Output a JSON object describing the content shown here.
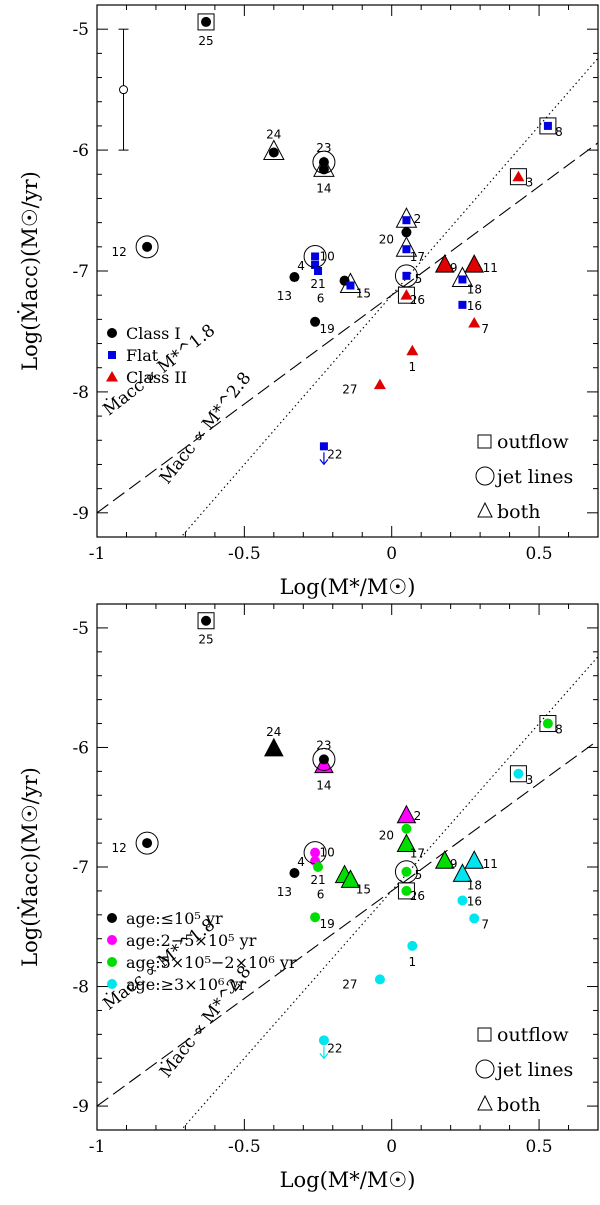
{
  "chart_data": [
    {
      "type": "scatter",
      "panel": "top",
      "xlabel": "Log(M*/M☉)",
      "ylabel": "Log(Ṁacc)(M☉/yr)",
      "xlim": [
        -1,
        0.7
      ],
      "ylim": [
        -9.2,
        -4.8
      ],
      "xticks": [
        "-1",
        "-0.5",
        "0",
        "0.5"
      ],
      "yticks": [
        "-9",
        "-8",
        "-7",
        "-6",
        "-5"
      ],
      "colors": {
        "class1": "#000000",
        "flat": "#0000e0",
        "class2": "#e00000"
      },
      "error_bar": {
        "x": -0.91,
        "y": -5.5,
        "ylow": -6.0,
        "yhigh": -5.0
      },
      "relations": [
        {
          "label": "Ṁacc ∝ M*^1.8",
          "slope": 1.8,
          "intercept": -7.2,
          "style": "dashed"
        },
        {
          "label": "Ṁacc ∝ M*^2.8",
          "slope": 2.8,
          "intercept": -7.2,
          "style": "dotted"
        }
      ],
      "legend": [
        {
          "label": "Class I",
          "marker": "circle",
          "group": "class1"
        },
        {
          "label": "Flat",
          "marker": "square",
          "group": "flat"
        },
        {
          "label": "Class II",
          "marker": "triangle",
          "group": "class2"
        }
      ],
      "outflow_legend": [
        "outflow",
        "jet lines",
        "both"
      ],
      "points": [
        {
          "id": "1",
          "x": 0.07,
          "y": -7.66,
          "group": "class2",
          "ring": "none"
        },
        {
          "id": "2",
          "x": 0.05,
          "y": -6.58,
          "group": "flat",
          "ring": "triangle"
        },
        {
          "id": "3",
          "x": 0.43,
          "y": -6.22,
          "group": "class2",
          "ring": "square"
        },
        {
          "id": "4",
          "x": -0.26,
          "y": -6.95,
          "group": "flat",
          "ring": "none"
        },
        {
          "id": "5",
          "x": 0.05,
          "y": -7.04,
          "group": "flat",
          "ring": "circle"
        },
        {
          "id": "6",
          "x": -0.16,
          "y": -7.08,
          "group": "class1",
          "ring": "none"
        },
        {
          "id": "7",
          "x": 0.28,
          "y": -7.43,
          "group": "class2",
          "ring": "none"
        },
        {
          "id": "8",
          "x": 0.53,
          "y": -5.8,
          "group": "flat",
          "ring": "square"
        },
        {
          "id": "9",
          "x": 0.18,
          "y": -6.96,
          "group": "class2",
          "ring": "triangle"
        },
        {
          "id": "10",
          "x": -0.26,
          "y": -6.88,
          "group": "flat",
          "ring": "circle"
        },
        {
          "id": "11",
          "x": 0.28,
          "y": -6.96,
          "group": "class2",
          "ring": "triangle"
        },
        {
          "id": "12",
          "x": -0.83,
          "y": -6.8,
          "group": "class1",
          "ring": "circle"
        },
        {
          "id": "13",
          "x": -0.33,
          "y": -7.05,
          "group": "class1",
          "ring": "none"
        },
        {
          "id": "14",
          "x": -0.23,
          "y": -6.16,
          "group": "class1",
          "ring": "triangle"
        },
        {
          "id": "15",
          "x": -0.14,
          "y": -7.12,
          "group": "flat",
          "ring": "triangle"
        },
        {
          "id": "16",
          "x": 0.24,
          "y": -7.28,
          "group": "flat",
          "ring": "none"
        },
        {
          "id": "17",
          "x": 0.05,
          "y": -6.82,
          "group": "flat",
          "ring": "triangle"
        },
        {
          "id": "18",
          "x": 0.24,
          "y": -7.07,
          "group": "flat",
          "ring": "triangle"
        },
        {
          "id": "19",
          "x": -0.26,
          "y": -7.42,
          "group": "class1",
          "ring": "none"
        },
        {
          "id": "20",
          "x": 0.05,
          "y": -6.68,
          "group": "class1",
          "ring": "none"
        },
        {
          "id": "21",
          "x": -0.25,
          "y": -7.0,
          "group": "flat",
          "ring": "none"
        },
        {
          "id": "22",
          "x": -0.23,
          "y": -8.45,
          "group": "flat",
          "ring": "none",
          "upper_limit": true
        },
        {
          "id": "23",
          "x": -0.23,
          "y": -6.1,
          "group": "class1",
          "ring": "circle"
        },
        {
          "id": "24",
          "x": -0.4,
          "y": -6.02,
          "group": "class1",
          "ring": "triangle"
        },
        {
          "id": "25",
          "x": -0.63,
          "y": -4.94,
          "group": "class1",
          "ring": "square"
        },
        {
          "id": "26",
          "x": 0.05,
          "y": -7.2,
          "group": "class2",
          "ring": "square"
        },
        {
          "id": "27",
          "x": -0.04,
          "y": -7.94,
          "group": "class2",
          "ring": "none"
        }
      ]
    },
    {
      "type": "scatter",
      "panel": "bottom",
      "xlabel": "Log(M*/M☉)",
      "ylabel": "Log(Ṁacc)(M☉/yr)",
      "xlim": [
        -1,
        0.7
      ],
      "ylim": [
        -9.2,
        -4.8
      ],
      "xticks": [
        "-1",
        "-0.5",
        "0",
        "0.5"
      ],
      "yticks": [
        "-9",
        "-8",
        "-7",
        "-6",
        "-5"
      ],
      "colors": {
        "age1": "#000000",
        "age2": "#ff00ff",
        "age3": "#00dd00",
        "age4": "#00e5ee"
      },
      "relations": [
        {
          "label": "Ṁacc ∝ M*^1.8",
          "slope": 1.8,
          "intercept": -7.2,
          "style": "dashed"
        },
        {
          "label": "Ṁacc ∝ M*^2.8",
          "slope": 2.8,
          "intercept": -7.2,
          "style": "dotted"
        }
      ],
      "legend": [
        {
          "label": "age:≤10⁵ yr",
          "marker": "circle",
          "group": "age1"
        },
        {
          "label": "age:2−5×10⁵ yr",
          "marker": "circle",
          "group": "age2"
        },
        {
          "label": "age:5×10⁵−2×10⁶ yr",
          "marker": "circle",
          "group": "age3"
        },
        {
          "label": "age:≥3×10⁶ yr",
          "marker": "circle",
          "group": "age4"
        }
      ],
      "outflow_legend": [
        "outflow",
        "jet lines",
        "both"
      ],
      "points": [
        {
          "id": "1",
          "x": 0.07,
          "y": -7.66,
          "group": "age4",
          "ring": "none"
        },
        {
          "id": "2",
          "x": 0.05,
          "y": -6.58,
          "group": "age2",
          "ring": "triangle"
        },
        {
          "id": "3",
          "x": 0.43,
          "y": -6.22,
          "group": "age4",
          "ring": "square"
        },
        {
          "id": "4",
          "x": -0.26,
          "y": -6.95,
          "group": "age2",
          "ring": "none"
        },
        {
          "id": "5",
          "x": 0.05,
          "y": -7.04,
          "group": "age3",
          "ring": "circle"
        },
        {
          "id": "6",
          "x": -0.16,
          "y": -7.08,
          "group": "age3",
          "ring": "triangle"
        },
        {
          "id": "7",
          "x": 0.28,
          "y": -7.43,
          "group": "age4",
          "ring": "none"
        },
        {
          "id": "8",
          "x": 0.53,
          "y": -5.8,
          "group": "age3",
          "ring": "square"
        },
        {
          "id": "9",
          "x": 0.18,
          "y": -6.96,
          "group": "age3",
          "ring": "triangle"
        },
        {
          "id": "10",
          "x": -0.26,
          "y": -6.88,
          "group": "age2",
          "ring": "circle"
        },
        {
          "id": "11",
          "x": 0.28,
          "y": -6.96,
          "group": "age4",
          "ring": "triangle"
        },
        {
          "id": "12",
          "x": -0.83,
          "y": -6.8,
          "group": "age1",
          "ring": "circle"
        },
        {
          "id": "13",
          "x": -0.33,
          "y": -7.05,
          "group": "age1",
          "ring": "none"
        },
        {
          "id": "14",
          "x": -0.23,
          "y": -6.16,
          "group": "age2",
          "ring": "triangle"
        },
        {
          "id": "15",
          "x": -0.14,
          "y": -7.12,
          "group": "age3",
          "ring": "triangle"
        },
        {
          "id": "16",
          "x": 0.24,
          "y": -7.28,
          "group": "age4",
          "ring": "none"
        },
        {
          "id": "17",
          "x": 0.05,
          "y": -6.82,
          "group": "age3",
          "ring": "triangle"
        },
        {
          "id": "18",
          "x": 0.24,
          "y": -7.07,
          "group": "age4",
          "ring": "triangle"
        },
        {
          "id": "19",
          "x": -0.26,
          "y": -7.42,
          "group": "age3",
          "ring": "none"
        },
        {
          "id": "20",
          "x": 0.05,
          "y": -6.68,
          "group": "age3",
          "ring": "none"
        },
        {
          "id": "21",
          "x": -0.25,
          "y": -7.0,
          "group": "age3",
          "ring": "none"
        },
        {
          "id": "22",
          "x": -0.23,
          "y": -8.45,
          "group": "age4",
          "ring": "none",
          "upper_limit": true
        },
        {
          "id": "23",
          "x": -0.23,
          "y": -6.1,
          "group": "age1",
          "ring": "circle"
        },
        {
          "id": "24",
          "x": -0.4,
          "y": -6.02,
          "group": "age1",
          "ring": "triangle"
        },
        {
          "id": "25",
          "x": -0.63,
          "y": -4.94,
          "group": "age1",
          "ring": "square"
        },
        {
          "id": "26",
          "x": 0.05,
          "y": -7.2,
          "group": "age3",
          "ring": "square"
        },
        {
          "id": "27",
          "x": -0.04,
          "y": -7.94,
          "group": "age4",
          "ring": "none"
        }
      ]
    }
  ]
}
